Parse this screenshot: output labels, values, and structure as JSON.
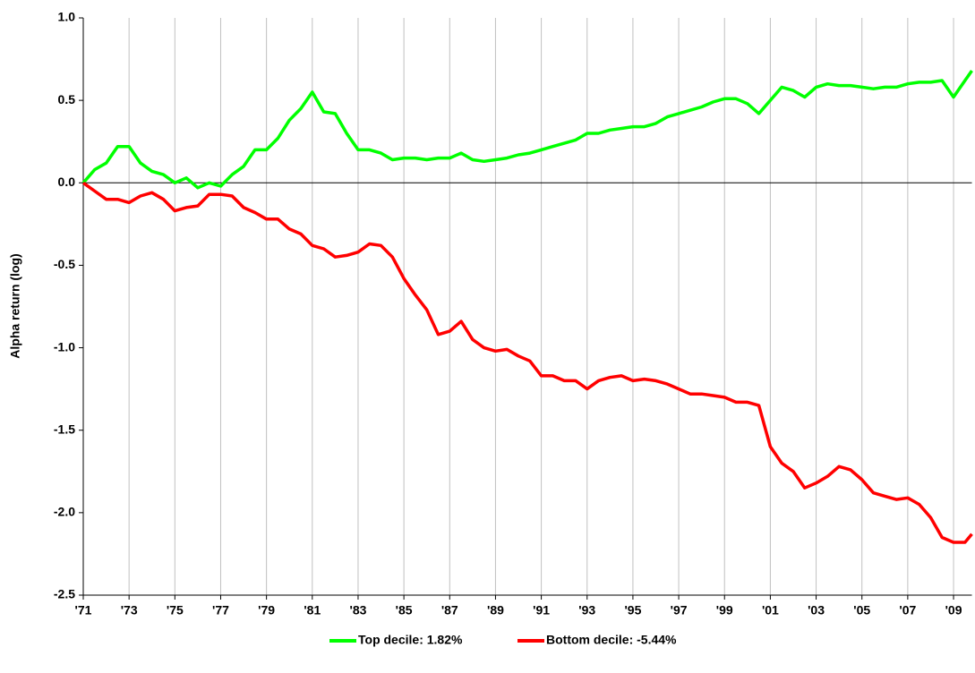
{
  "chart_data": {
    "type": "line",
    "y_label": "Alpha return (log)",
    "x": [
      1971.0,
      1971.5,
      1972.0,
      1972.5,
      1973.0,
      1973.5,
      1974.0,
      1974.5,
      1975.0,
      1975.5,
      1976.0,
      1976.5,
      1977.0,
      1977.5,
      1978.0,
      1978.5,
      1979.0,
      1979.5,
      1980.0,
      1980.5,
      1981.0,
      1981.5,
      1982.0,
      1982.5,
      1983.0,
      1983.5,
      1984.0,
      1984.5,
      1985.0,
      1985.5,
      1986.0,
      1986.5,
      1987.0,
      1987.5,
      1988.0,
      1988.5,
      1989.0,
      1989.5,
      1990.0,
      1990.5,
      1991.0,
      1991.5,
      1992.0,
      1992.5,
      1993.0,
      1993.5,
      1994.0,
      1994.5,
      1995.0,
      1995.5,
      1996.0,
      1996.5,
      1997.0,
      1997.5,
      1998.0,
      1998.5,
      1999.0,
      1999.5,
      2000.0,
      2000.5,
      2001.0,
      2001.5,
      2002.0,
      2002.5,
      2003.0,
      2003.5,
      2004.0,
      2004.5,
      2005.0,
      2005.5,
      2006.0,
      2006.5,
      2007.0,
      2007.5,
      2008.0,
      2008.5,
      2009.0,
      2009.5,
      2009.8
    ],
    "series": [
      {
        "name": "Top decile: 1.82%",
        "color": "#00ff00",
        "values": [
          0.0,
          0.08,
          0.12,
          0.22,
          0.22,
          0.12,
          0.07,
          0.05,
          0.0,
          0.03,
          -0.03,
          0.0,
          -0.02,
          0.05,
          0.1,
          0.2,
          0.2,
          0.27,
          0.38,
          0.45,
          0.55,
          0.43,
          0.42,
          0.3,
          0.2,
          0.2,
          0.18,
          0.14,
          0.15,
          0.15,
          0.14,
          0.15,
          0.15,
          0.18,
          0.14,
          0.13,
          0.14,
          0.15,
          0.17,
          0.18,
          0.2,
          0.22,
          0.24,
          0.26,
          0.3,
          0.3,
          0.32,
          0.33,
          0.34,
          0.34,
          0.36,
          0.4,
          0.42,
          0.44,
          0.46,
          0.49,
          0.51,
          0.51,
          0.48,
          0.42,
          0.5,
          0.58,
          0.56,
          0.52,
          0.58,
          0.6,
          0.59,
          0.59,
          0.58,
          0.57,
          0.58,
          0.58,
          0.6,
          0.61,
          0.61,
          0.62,
          0.52,
          0.62,
          0.68
        ]
      },
      {
        "name": "Bottom decile: -5.44%",
        "color": "#ff0000",
        "values": [
          0.0,
          -0.05,
          -0.1,
          -0.1,
          -0.12,
          -0.08,
          -0.06,
          -0.1,
          -0.17,
          -0.15,
          -0.14,
          -0.07,
          -0.07,
          -0.08,
          -0.15,
          -0.18,
          -0.22,
          -0.22,
          -0.28,
          -0.31,
          -0.38,
          -0.4,
          -0.45,
          -0.44,
          -0.42,
          -0.37,
          -0.38,
          -0.45,
          -0.58,
          -0.68,
          -0.77,
          -0.92,
          -0.9,
          -0.84,
          -0.95,
          -1.0,
          -1.02,
          -1.01,
          -1.05,
          -1.08,
          -1.17,
          -1.17,
          -1.2,
          -1.2,
          -1.25,
          -1.2,
          -1.18,
          -1.17,
          -1.2,
          -1.19,
          -1.2,
          -1.22,
          -1.25,
          -1.28,
          -1.28,
          -1.29,
          -1.3,
          -1.33,
          -1.33,
          -1.35,
          -1.6,
          -1.7,
          -1.75,
          -1.85,
          -1.82,
          -1.78,
          -1.72,
          -1.74,
          -1.8,
          -1.88,
          -1.9,
          -1.92,
          -1.91,
          -1.95,
          -2.03,
          -2.15,
          -2.18,
          -2.18,
          -2.13
        ]
      }
    ],
    "xlim": [
      1971,
      2009.8
    ],
    "xticks": [
      {
        "value": 1971,
        "label": "'71"
      },
      {
        "value": 1973,
        "label": "'73"
      },
      {
        "value": 1975,
        "label": "'75"
      },
      {
        "value": 1977,
        "label": "'77"
      },
      {
        "value": 1979,
        "label": "'79"
      },
      {
        "value": 1981,
        "label": "'81"
      },
      {
        "value": 1983,
        "label": "'83"
      },
      {
        "value": 1985,
        "label": "'85"
      },
      {
        "value": 1987,
        "label": "'87"
      },
      {
        "value": 1989,
        "label": "'89"
      },
      {
        "value": 1991,
        "label": "'91"
      },
      {
        "value": 1993,
        "label": "'93"
      },
      {
        "value": 1995,
        "label": "'95"
      },
      {
        "value": 1997,
        "label": "'97"
      },
      {
        "value": 1999,
        "label": "'99"
      },
      {
        "value": 2001,
        "label": "'01"
      },
      {
        "value": 2003,
        "label": "'03"
      },
      {
        "value": 2005,
        "label": "'05"
      },
      {
        "value": 2007,
        "label": "'07"
      },
      {
        "value": 2009,
        "label": "'09"
      }
    ],
    "ylim": [
      -2.5,
      1.0
    ],
    "yticks": [
      {
        "value": 1.0,
        "label": "1.0"
      },
      {
        "value": 0.5,
        "label": "0.5"
      },
      {
        "value": 0.0,
        "label": "0.0"
      },
      {
        "value": -0.5,
        "label": "-0.5"
      },
      {
        "value": -1.0,
        "label": "-1.0"
      },
      {
        "value": -1.5,
        "label": "-1.5"
      },
      {
        "value": -2.0,
        "label": "-2.0"
      },
      {
        "value": -2.5,
        "label": "-2.5"
      }
    ],
    "xgrid": true,
    "legend": "bottom"
  }
}
